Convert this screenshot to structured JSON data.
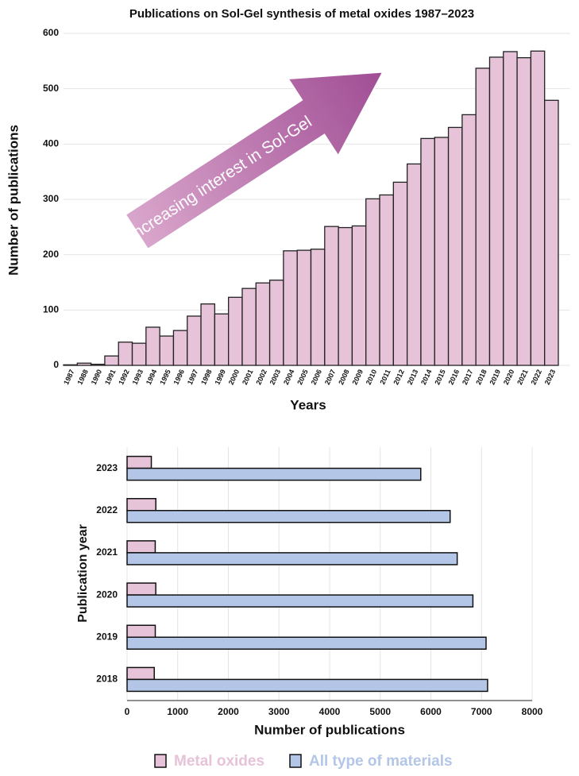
{
  "chart_data": [
    {
      "type": "bar",
      "title": "Publications on Sol-Gel synthesis of metal oxides 1987–2023",
      "x_label": "Years",
      "y_label": "Number of publications",
      "annotation": "Increasing interest in Sol-Gel",
      "categories": [
        "1987",
        "1988",
        "1990",
        "1991",
        "1992",
        "1993",
        "1994",
        "1995",
        "1996",
        "1997",
        "1998",
        "1999",
        "2000",
        "2001",
        "2002",
        "2003",
        "2004",
        "2005",
        "2006",
        "2007",
        "2008",
        "2009",
        "2010",
        "2011",
        "2012",
        "2013",
        "2014",
        "2015",
        "2016",
        "2017",
        "2018",
        "2019",
        "2020",
        "2021",
        "2022",
        "2023"
      ],
      "values": [
        1,
        4,
        2,
        17,
        42,
        40,
        69,
        53,
        63,
        89,
        111,
        93,
        123,
        139,
        149,
        154,
        207,
        208,
        210,
        251,
        249,
        252,
        301,
        308,
        331,
        364,
        410,
        412,
        430,
        453,
        537,
        557,
        567,
        556,
        568,
        479
      ],
      "color": "#e6c3d8",
      "ylim": [
        0,
        600
      ],
      "yticks": [
        0,
        100,
        200,
        300,
        400,
        500,
        600
      ],
      "grid": true
    },
    {
      "type": "hbar",
      "x_label": "Number of publications",
      "y_label": "Publication year",
      "categories": [
        "2018",
        "2019",
        "2020",
        "2021",
        "2022",
        "2023"
      ],
      "series": [
        {
          "name": "Metal oxides",
          "color": "#e6c3d8",
          "values": [
            537,
            557,
            567,
            556,
            568,
            479
          ]
        },
        {
          "name": "All type of materials",
          "color": "#b4c6e7",
          "values": [
            7120,
            7090,
            6830,
            6520,
            6380,
            5800
          ]
        }
      ],
      "xlim": [
        0,
        8000
      ],
      "xticks": [
        0,
        1000,
        2000,
        3000,
        4000,
        5000,
        6000,
        7000,
        8000
      ],
      "grid": true,
      "legend": "bottom"
    }
  ]
}
